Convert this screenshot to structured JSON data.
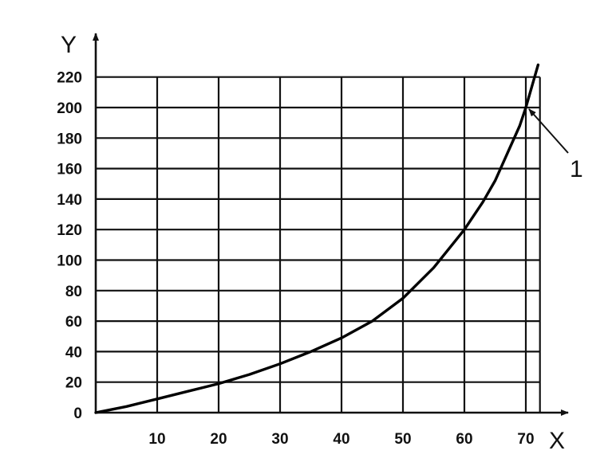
{
  "chart_data": {
    "type": "line",
    "title": "",
    "xlabel": "X",
    "ylabel": "Y",
    "xlim": [
      0,
      75
    ],
    "ylim": [
      0,
      225
    ],
    "x_ticks": [
      10,
      20,
      30,
      40,
      50,
      60,
      70
    ],
    "y_ticks": [
      0,
      20,
      40,
      60,
      80,
      100,
      120,
      140,
      160,
      180,
      200,
      220
    ],
    "grid": true,
    "x_grid_max": 71,
    "y_grid_max": 220,
    "series": [
      {
        "name": "",
        "x": [
          0,
          5,
          10,
          15,
          20,
          25,
          30,
          35,
          40,
          45,
          50,
          55,
          60,
          63,
          65,
          67,
          69,
          70,
          71,
          72
        ],
        "y": [
          0,
          4,
          9,
          14,
          19,
          25,
          32,
          40,
          49,
          60,
          75,
          95,
          120,
          138,
          152,
          170,
          188,
          200,
          214,
          228
        ]
      }
    ],
    "annotations": [
      {
        "label": "1",
        "point": [
          70,
          200
        ]
      }
    ]
  }
}
